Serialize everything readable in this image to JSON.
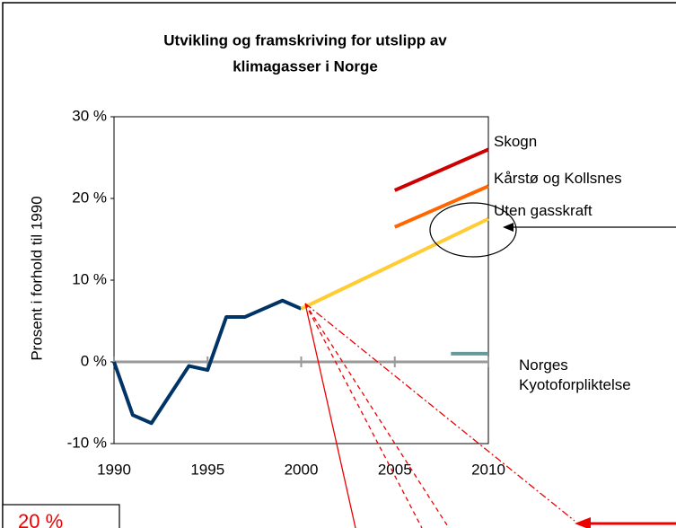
{
  "chart_data": {
    "type": "line",
    "title_lines": [
      "Utvikling og framskriving for utslipp av",
      "klimagasser i Norge"
    ],
    "y_label": "Prosent i forhold til 1990",
    "xlim": [
      1990,
      2010
    ],
    "xticks": [
      1990,
      1995,
      2000,
      2005,
      2010
    ],
    "ylim": [
      -10,
      30
    ],
    "yticks": [
      {
        "value": -10,
        "label": "-10 %"
      },
      {
        "value": 0,
        "label": "0 %"
      },
      {
        "value": 10,
        "label": "10 %"
      },
      {
        "value": 20,
        "label": "20 %"
      },
      {
        "value": 30,
        "label": "30 %"
      }
    ],
    "grid": false,
    "series": [
      {
        "name": null,
        "color": "#003366",
        "x": [
          1990,
          1991,
          1992,
          1993,
          1994,
          1995,
          1996,
          1997,
          1998,
          1999,
          2000
        ],
        "values": [
          0,
          -6.5,
          -7.5,
          -4,
          -0.5,
          -1,
          5.5,
          5.5,
          6.5,
          7.5,
          6.5
        ]
      },
      {
        "name": "Uten gasskraft",
        "color": "#ffcc33",
        "x": [
          2000,
          2005,
          2010
        ],
        "values": [
          6.5,
          12,
          17.5
        ]
      },
      {
        "name": "Kårstø og Kollsnes",
        "color": "#ff6600",
        "x": [
          2005,
          2010
        ],
        "values": [
          16.5,
          21.5
        ]
      },
      {
        "name": "Skogn",
        "color": "#cc0000",
        "x": [
          2005,
          2010
        ],
        "values": [
          21,
          26
        ]
      },
      {
        "name": "Norges Kyotoforpliktelse",
        "color": "#669999",
        "x": [
          2008,
          2010
        ],
        "values": [
          1,
          1
        ]
      }
    ],
    "annotation": "20 %"
  }
}
